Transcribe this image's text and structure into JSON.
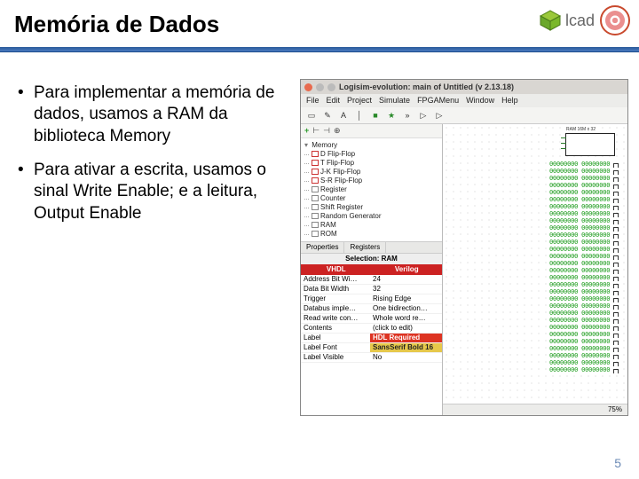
{
  "slide": {
    "title": "Memória de Dados",
    "page_number": "5",
    "logo_text": "lcad"
  },
  "bullets": [
    "Para implementar a memória de dados, usamos a RAM da biblioteca Memory",
    "Para ativar a escrita, usamos o sinal Write Enable; e a leitura, Output Enable"
  ],
  "app": {
    "title": "Logisim-evolution: main of Untitled (v 2.13.18)",
    "menus": [
      "File",
      "Edit",
      "Project",
      "Simulate",
      "FPGAMenu",
      "Window",
      "Help"
    ],
    "toolbar_glyphs": [
      "▭",
      "✎",
      "A",
      "│",
      "■",
      "★",
      "»",
      "▷",
      "▷"
    ],
    "toolrow_glyphs": [
      "+",
      "⊢",
      "⊣",
      "⊕"
    ],
    "tree": {
      "group": "Memory",
      "items": [
        "D Flip-Flop",
        "T Flip-Flop",
        "J-K Flip-Flop",
        "S-R Flip-Flop",
        "Register",
        "Counter",
        "Shift Register",
        "Random Generator",
        "RAM",
        "ROM"
      ]
    },
    "props": {
      "tabs": [
        "Properties",
        "Registers"
      ],
      "selection": "Selection: RAM",
      "hdl": [
        "VHDL",
        "Verilog"
      ],
      "rows": [
        {
          "k": "Address Bit Wi…",
          "v": "24"
        },
        {
          "k": "Data Bit Width",
          "v": "32"
        },
        {
          "k": "Trigger",
          "v": "Rising Edge"
        },
        {
          "k": "Databus imple…",
          "v": "One bidirection…"
        },
        {
          "k": "Read write con…",
          "v": "Whole word re…"
        },
        {
          "k": "Contents",
          "v": "(click to edit)"
        },
        {
          "k": "Label",
          "v": "HDL Required",
          "hl": "red"
        },
        {
          "k": "Label Font",
          "v": "SansSerif Bold 16",
          "hl": "yel"
        },
        {
          "k": "Label Visible",
          "v": "No"
        }
      ]
    },
    "canvas": {
      "ram_label": "RAM 16M x 32",
      "data_lines": [
        "00000000 00000000",
        "00000000 00000000",
        "00000000 00000000",
        "00000000 00000000",
        "00000000 00000000",
        "00000000 00000000",
        "00000000 00000000",
        "00000000 00000000",
        "00000000 00000000",
        "00000000 00000000",
        "00000000 00000000",
        "00000000 00000000",
        "00000000 00000000",
        "00000000 00000000",
        "00000000 00000000",
        "00000000 00000000",
        "00000000 00000000",
        "00000000 00000000",
        "00000000 00000000",
        "00000000 00000000",
        "00000000 00000000",
        "00000000 00000000",
        "00000000 00000000",
        "00000000 00000000",
        "00000000 00000000",
        "00000000 00000000",
        "00000000 00000000",
        "00000000 00000000",
        "00000000 00000000",
        "00000000 00000000"
      ]
    },
    "zoom": "75%"
  }
}
